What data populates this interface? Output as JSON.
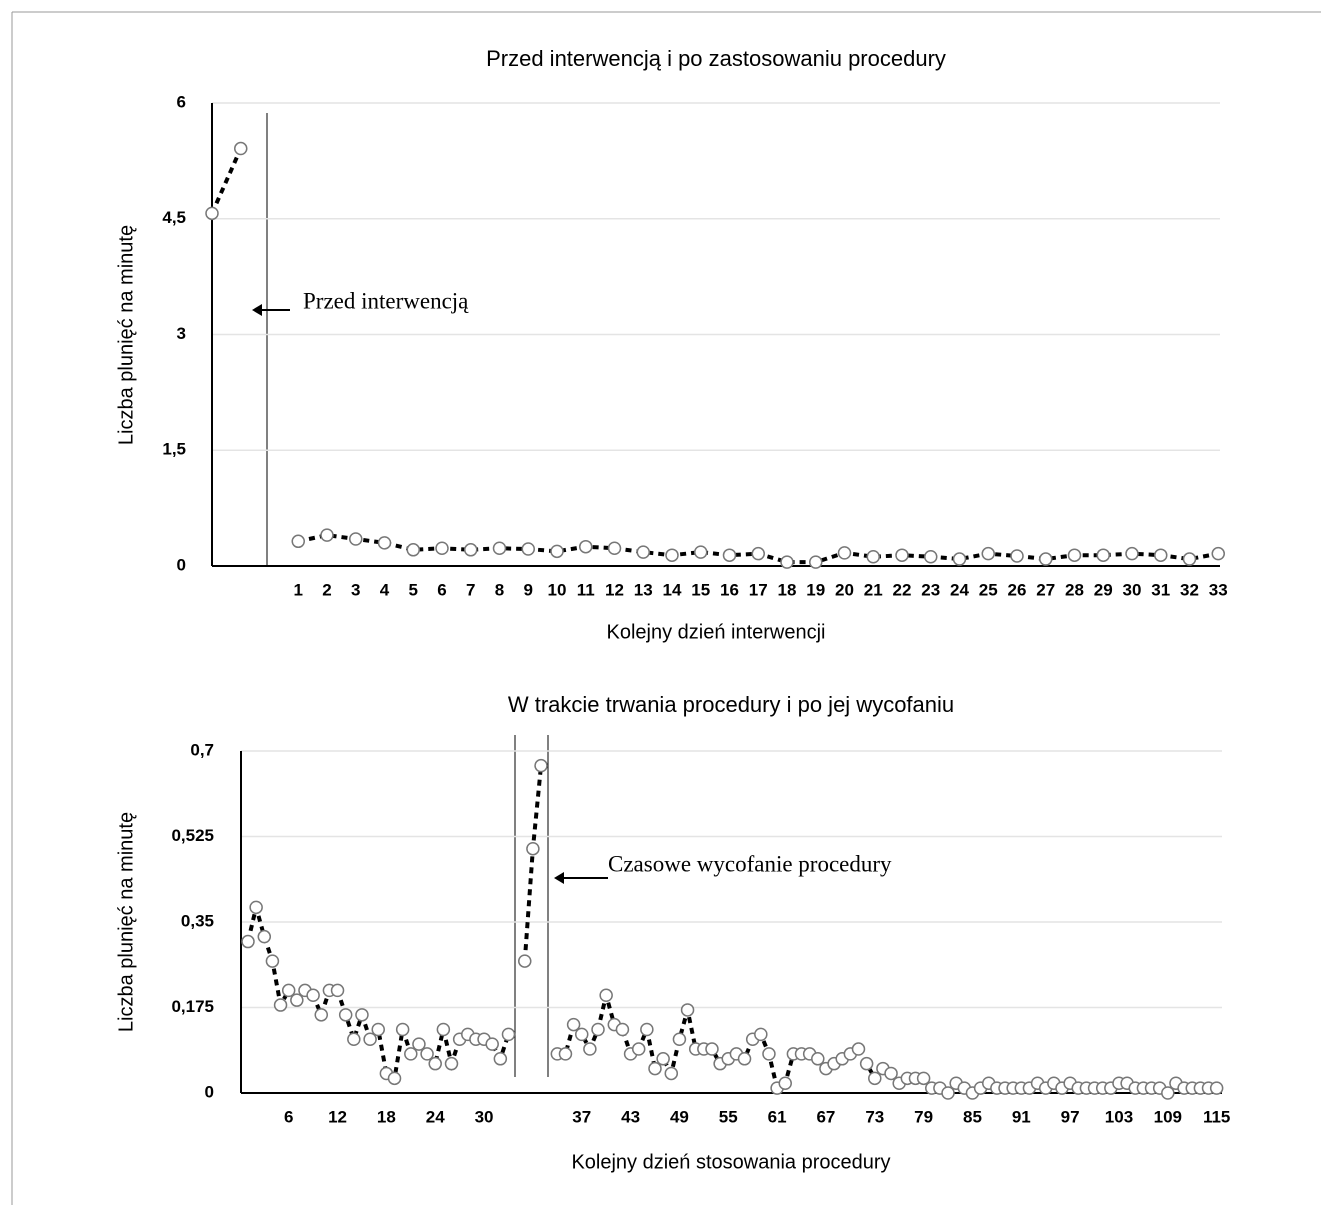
{
  "chart_data": [
    {
      "type": "line",
      "title": "Przed interwencją i po zastosowaniu procedury",
      "x_label": "Kolejny dzień interwencji",
      "y_label": "Liczba plunięć na minutę",
      "annotation": "Przed interwencją",
      "color": "#000000",
      "categories": [
        null,
        null,
        null,
        "1",
        "2",
        "3",
        "4",
        "5",
        "6",
        "7",
        "8",
        "9",
        "10",
        "11",
        "12",
        "13",
        "14",
        "15",
        "16",
        "17",
        "18",
        "19",
        "20",
        "21",
        "22",
        "23",
        "24",
        "25",
        "26",
        "27",
        "28",
        "29",
        "30",
        "31",
        "32",
        "33"
      ],
      "values": [
        4.57,
        5.41,
        null,
        0.32,
        0.4,
        0.35,
        0.3,
        0.21,
        0.23,
        0.21,
        0.23,
        0.22,
        0.19,
        0.25,
        0.23,
        0.18,
        0.14,
        0.18,
        0.14,
        0.16,
        0.05,
        0.05,
        0.17,
        0.12,
        0.14,
        0.12,
        0.09,
        0.16,
        0.13,
        0.09,
        0.14,
        0.14,
        0.16,
        0.14,
        0.09,
        0.16
      ],
      "ylim": [
        0,
        6
      ],
      "yticks": [
        0,
        {
          "value": 1.5,
          "label": "1,5"
        },
        3,
        {
          "value": 4.5,
          "label": "4,5"
        },
        6
      ],
      "grid": true
    },
    {
      "type": "line",
      "title": "W trakcie trwania procedury i po jej wycofaniu",
      "x_label": "Kolejny dzień stosowania procedury",
      "y_label": "Liczba plunięć na minutę",
      "annotation": "Czasowe wycofanie procedury",
      "color": "#000000",
      "categories": [
        null,
        null,
        null,
        null,
        null,
        "6",
        null,
        null,
        null,
        null,
        null,
        "12",
        null,
        null,
        null,
        null,
        null,
        "18",
        null,
        null,
        null,
        null,
        null,
        "24",
        null,
        null,
        null,
        null,
        null,
        "30",
        null,
        null,
        null,
        null,
        null,
        null,
        null,
        null,
        null,
        null,
        null,
        "37",
        null,
        null,
        null,
        null,
        null,
        "43",
        null,
        null,
        null,
        null,
        null,
        "49",
        null,
        null,
        null,
        null,
        null,
        "55",
        null,
        null,
        null,
        null,
        null,
        "61",
        null,
        null,
        null,
        null,
        null,
        "67",
        null,
        null,
        null,
        null,
        null,
        "73",
        null,
        null,
        null,
        null,
        null,
        "79",
        null,
        null,
        null,
        null,
        null,
        "85",
        null,
        null,
        null,
        null,
        null,
        "91",
        null,
        null,
        null,
        null,
        null,
        "97",
        null,
        null,
        null,
        null,
        null,
        "103",
        null,
        null,
        null,
        null,
        null,
        "109",
        null,
        null,
        null,
        null,
        null,
        "115"
      ],
      "values": [
        0.31,
        0.38,
        0.32,
        0.27,
        0.18,
        0.21,
        0.19,
        0.21,
        0.2,
        0.16,
        0.21,
        0.21,
        0.16,
        0.11,
        0.16,
        0.11,
        0.13,
        0.04,
        0.03,
        0.13,
        0.08,
        0.1,
        0.08,
        0.06,
        0.13,
        0.06,
        0.11,
        0.12,
        0.11,
        0.11,
        0.1,
        0.07,
        0.12,
        null,
        0.27,
        0.5,
        0.67,
        null,
        0.08,
        0.08,
        0.14,
        0.12,
        0.09,
        0.13,
        0.2,
        0.14,
        0.13,
        0.08,
        0.09,
        0.13,
        0.05,
        0.07,
        0.04,
        0.11,
        0.17,
        0.09,
        0.09,
        0.09,
        0.06,
        0.07,
        0.08,
        0.07,
        0.11,
        0.12,
        0.08,
        0.01,
        0.02,
        0.08,
        0.08,
        0.08,
        0.07,
        0.05,
        0.06,
        0.07,
        0.08,
        0.09,
        0.06,
        0.03,
        0.05,
        0.04,
        0.02,
        0.03,
        0.03,
        0.03,
        0.01,
        0.01,
        0,
        0.02,
        0.01,
        0,
        0.01,
        0.02,
        0.01,
        0.01,
        0.01,
        0.01,
        0.01,
        0.02,
        0.01,
        0.02,
        0.01,
        0.02,
        0.01,
        0.01,
        0.01,
        0.01,
        0.01,
        0.02,
        0.02,
        0.01,
        0.01,
        0.01,
        0.01,
        0,
        0.02,
        0.01,
        0.01,
        0.01,
        0.01,
        0.01
      ],
      "ylim": [
        0,
        0.7
      ],
      "yticks": [
        0,
        {
          "value": 0.175,
          "label": "0,175"
        },
        {
          "value": 0.35,
          "label": "0,35"
        },
        {
          "value": 0.525,
          "label": "0,525"
        },
        {
          "value": 0.7,
          "label": "0,7"
        }
      ],
      "grid": true
    }
  ]
}
